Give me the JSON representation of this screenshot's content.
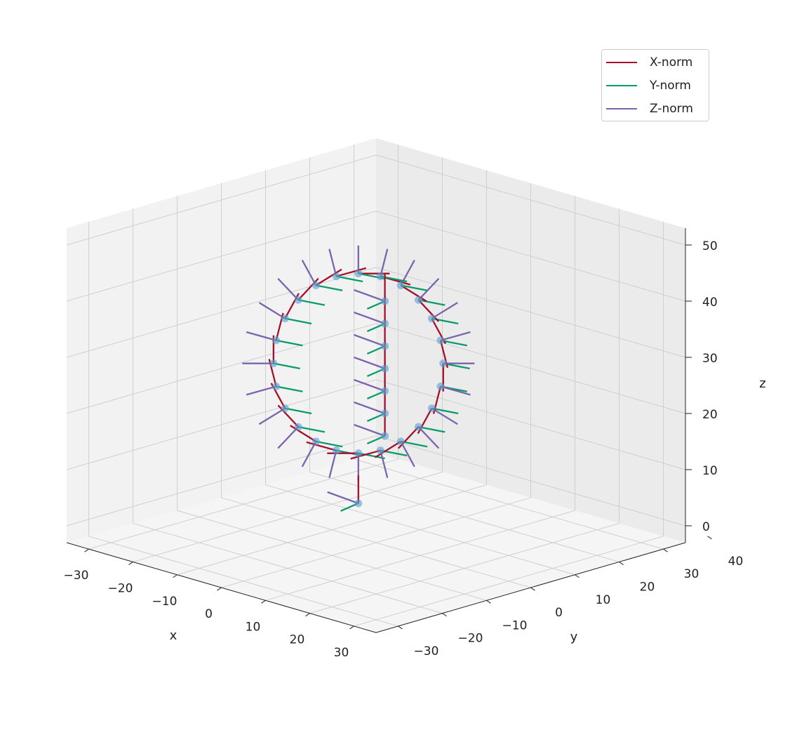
{
  "chart_data": {
    "type": "scatter3d-quiver",
    "title": "",
    "xlabel": "x",
    "ylabel": "y",
    "zlabel": "z",
    "xlim": [
      -35,
      35
    ],
    "ylim": [
      -35,
      35
    ],
    "zlim": [
      -3,
      53
    ],
    "xticks": [
      "−30",
      "−20",
      "−10",
      "0",
      "10",
      "20",
      "30"
    ],
    "xtick_values": [
      -30,
      -20,
      -10,
      0,
      10,
      20,
      30
    ],
    "yticks": [
      "−30",
      "−20",
      "−10",
      "0",
      "10",
      "20",
      "30",
      "40"
    ],
    "ytick_values": [
      -30,
      -20,
      -10,
      0,
      10,
      20,
      30,
      40
    ],
    "zticks": [
      "0",
      "10",
      "20",
      "30",
      "40",
      "50"
    ],
    "ztick_values": [
      0,
      10,
      20,
      30,
      40,
      50
    ],
    "grid": true,
    "legend_position": "top-right",
    "point_color": "#5a9fcf",
    "series": [
      {
        "name": "X-norm",
        "color": "#a50f2a"
      },
      {
        "name": "Y-norm",
        "color": "#0a9b6c"
      },
      {
        "name": "Z-norm",
        "color": "#7b64ad"
      }
    ],
    "ring_points": [
      [
        5.6,
        9.6,
        28
      ],
      [
        5.3,
        9.3,
        32.1
      ],
      [
        4.3,
        8.3,
        36
      ],
      [
        2.8,
        6.8,
        39.3
      ],
      [
        0.8,
        4.8,
        41.9
      ],
      [
        -1.5,
        2.5,
        43.5
      ],
      [
        -4,
        0,
        44
      ],
      [
        -6.5,
        -2.5,
        43.5
      ],
      [
        -8.8,
        -4.8,
        41.9
      ],
      [
        -10.8,
        -6.8,
        39.3
      ],
      [
        -12.3,
        -8.3,
        36
      ],
      [
        -13.3,
        -9.3,
        32.1
      ],
      [
        -13.6,
        -9.6,
        28
      ],
      [
        -13.3,
        -9.3,
        23.9
      ],
      [
        -12.3,
        -8.3,
        20
      ],
      [
        -10.8,
        -6.8,
        16.7
      ],
      [
        -8.8,
        -4.8,
        14.1
      ],
      [
        -6.5,
        -2.5,
        12.5
      ],
      [
        -4,
        0,
        12
      ],
      [
        -1.5,
        2.5,
        12.5
      ],
      [
        0.8,
        4.8,
        14.1
      ],
      [
        2.8,
        6.8,
        16.7
      ],
      [
        4.3,
        8.3,
        20
      ],
      [
        5.3,
        9.3,
        23.9
      ]
    ],
    "inner_points": [
      [
        1,
        1,
        16
      ],
      [
        1,
        1,
        20
      ],
      [
        1,
        1,
        24
      ],
      [
        1,
        1,
        28
      ],
      [
        1,
        1,
        32
      ],
      [
        1,
        1,
        36
      ],
      [
        1,
        1,
        40
      ],
      [
        -2,
        -2,
        4
      ]
    ]
  }
}
